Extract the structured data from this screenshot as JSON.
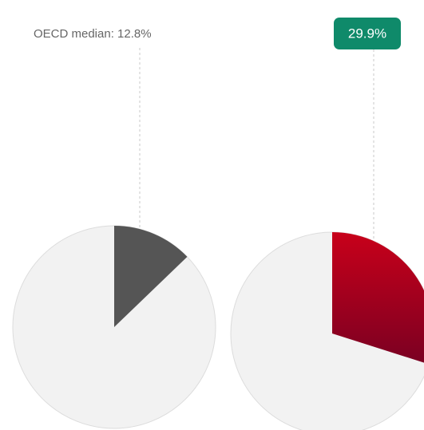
{
  "chart_data": [
    {
      "type": "pie",
      "values": [
        12.8
      ],
      "value_labels": [
        "OECD median: 12.8%"
      ],
      "color": "#555555"
    },
    {
      "type": "pie",
      "values": [
        29.9
      ],
      "value_labels": [
        "29.9%"
      ],
      "color": "#b3001c"
    }
  ]
}
